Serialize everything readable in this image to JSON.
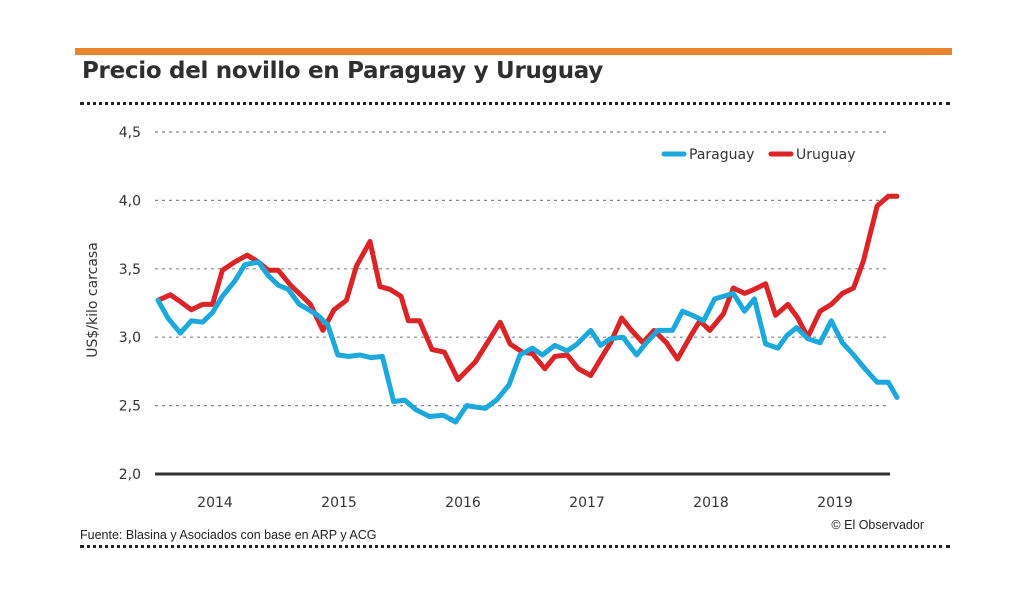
{
  "header": {
    "title": "Precio del novillo en Paraguay y Uruguay"
  },
  "footer": {
    "source": "Fuente: Blasina y Asociados con base en ARP y ACG",
    "credit": "© El Observador"
  },
  "colors": {
    "accent_bar": "#e8842a",
    "paraguay": "#1ba9dd",
    "uruguay": "#dc2427"
  },
  "chart_data": {
    "type": "line",
    "title": "Precio del novillo en Paraguay y Uruguay",
    "xlabel": "",
    "ylabel": "US$/kilo carcasa",
    "ylim": [
      2.0,
      4.5
    ],
    "xlim": [
      2014.0,
      2020.0
    ],
    "yticks": [
      2.0,
      2.5,
      3.0,
      3.5,
      4.0,
      4.5
    ],
    "ytick_labels": [
      "2,0",
      "2,5",
      "3,0",
      "3,5",
      "4,0",
      "4,5"
    ],
    "xtick_labels": [
      "2014",
      "2015",
      "2016",
      "2017",
      "2018",
      "2019"
    ],
    "xtick_positions": [
      2014.5,
      2015.5,
      2016.5,
      2017.5,
      2018.5,
      2019.5
    ],
    "grid": true,
    "legend": "top-right",
    "series": [
      {
        "name": "Paraguay",
        "x": [
          2014.04,
          2014.12,
          2014.22,
          2014.31,
          2014.4,
          2014.48,
          2014.56,
          2014.66,
          2014.74,
          2014.85,
          2014.93,
          2015.01,
          2015.09,
          2015.18,
          2015.22,
          2015.33,
          2015.41,
          2015.49,
          2015.58,
          2015.67,
          2015.76,
          2015.85,
          2015.94,
          2016.03,
          2016.12,
          2016.23,
          2016.34,
          2016.44,
          2016.53,
          2016.6,
          2016.68,
          2016.77,
          2016.87,
          2016.96,
          2017.06,
          2017.14,
          2017.24,
          2017.34,
          2017.42,
          2017.53,
          2017.61,
          2017.69,
          2017.79,
          2017.9,
          2017.97,
          2018.07,
          2018.19,
          2018.27,
          2018.35,
          2018.44,
          2018.53,
          2018.68,
          2018.77,
          2018.85,
          2018.94,
          2019.04,
          2019.11,
          2019.19,
          2019.28,
          2019.38,
          2019.47,
          2019.56,
          2019.65,
          2019.75,
          2019.84,
          2019.93,
          2020.0
        ],
        "values": [
          3.27,
          3.14,
          3.03,
          3.12,
          3.11,
          3.18,
          3.3,
          3.41,
          3.53,
          3.55,
          3.45,
          3.38,
          3.35,
          3.24,
          3.22,
          3.16,
          3.09,
          2.87,
          2.86,
          2.87,
          2.85,
          2.86,
          2.53,
          2.54,
          2.47,
          2.42,
          2.43,
          2.38,
          2.5,
          2.49,
          2.48,
          2.54,
          2.65,
          2.87,
          2.92,
          2.87,
          2.94,
          2.9,
          2.95,
          3.05,
          2.94,
          2.99,
          3.0,
          2.87,
          2.95,
          3.05,
          3.05,
          3.19,
          3.16,
          3.12,
          3.28,
          3.32,
          3.19,
          3.28,
          2.95,
          2.92,
          3.01,
          3.07,
          2.99,
          2.96,
          3.12,
          2.96,
          2.87,
          2.76,
          2.67,
          2.67,
          2.56
        ]
      },
      {
        "name": "Uruguay",
        "x": [
          2014.04,
          2014.14,
          2014.22,
          2014.31,
          2014.4,
          2014.48,
          2014.56,
          2014.66,
          2014.76,
          2014.85,
          2014.93,
          2015.01,
          2015.11,
          2015.19,
          2015.27,
          2015.37,
          2015.46,
          2015.56,
          2015.64,
          2015.75,
          2015.83,
          2015.91,
          2016.0,
          2016.06,
          2016.15,
          2016.25,
          2016.35,
          2016.46,
          2016.6,
          2016.8,
          2016.88,
          2016.98,
          2017.06,
          2017.16,
          2017.24,
          2017.34,
          2017.43,
          2017.53,
          2017.61,
          2017.69,
          2017.78,
          2017.86,
          2017.95,
          2018.04,
          2018.14,
          2018.23,
          2018.33,
          2018.41,
          2018.49,
          2018.6,
          2018.68,
          2018.77,
          2018.85,
          2018.94,
          2019.02,
          2019.12,
          2019.2,
          2019.28,
          2019.38,
          2019.47,
          2019.56,
          2019.65,
          2019.73,
          2019.84,
          2019.93,
          2020.0
        ],
        "values": [
          3.27,
          3.31,
          3.26,
          3.2,
          3.24,
          3.24,
          3.49,
          3.55,
          3.6,
          3.55,
          3.49,
          3.49,
          3.38,
          3.31,
          3.24,
          3.05,
          3.2,
          3.27,
          3.52,
          3.7,
          3.37,
          3.35,
          3.3,
          3.12,
          3.12,
          2.91,
          2.89,
          2.69,
          2.82,
          3.11,
          2.95,
          2.89,
          2.88,
          2.77,
          2.86,
          2.87,
          2.77,
          2.72,
          2.84,
          2.96,
          3.14,
          3.05,
          2.96,
          3.05,
          2.96,
          2.84,
          3.0,
          3.12,
          3.05,
          3.17,
          3.36,
          3.32,
          3.35,
          3.39,
          3.16,
          3.24,
          3.14,
          3.0,
          3.19,
          3.24,
          3.32,
          3.36,
          3.56,
          3.96,
          4.03,
          4.03
        ]
      }
    ]
  }
}
